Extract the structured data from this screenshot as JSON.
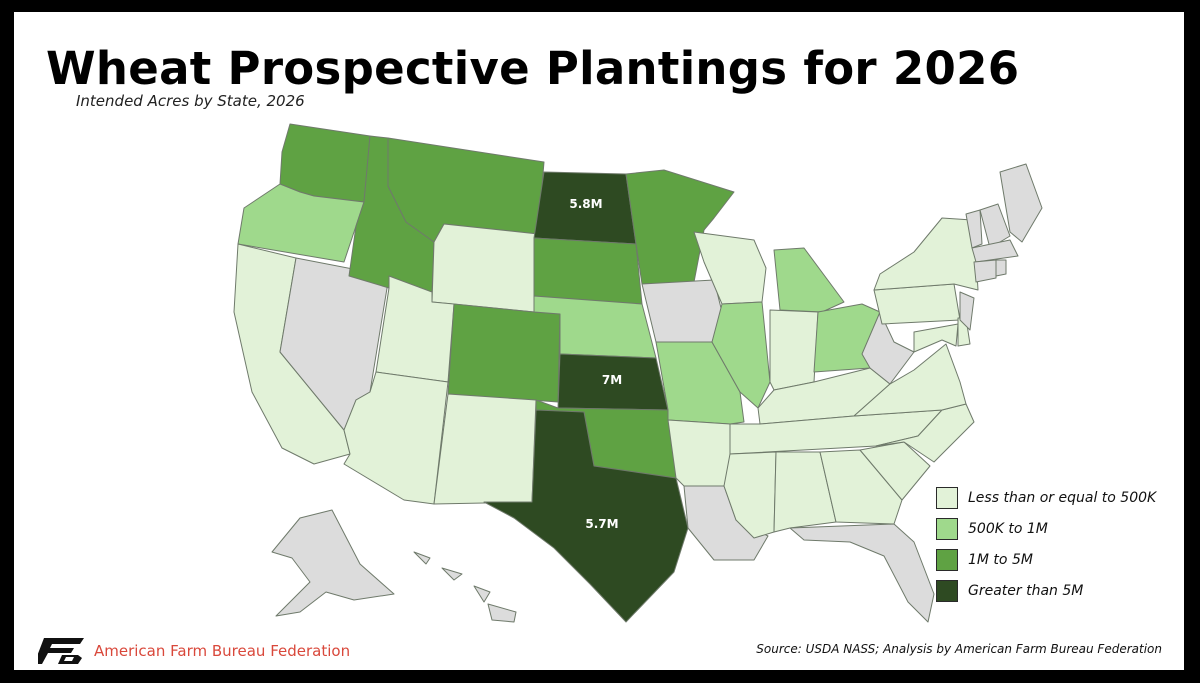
{
  "title": "Wheat Prospective Plantings for 2026",
  "subtitle": "Intended Acres by State, 2026",
  "colors": {
    "none": "#dcdcdc",
    "lte_500k": "#e2f2d8",
    "500k_1m": "#9fd98c",
    "1m_5m": "#5fa243",
    "gt_5m": "#2e4a22",
    "border": "#6f7a6b"
  },
  "legend": [
    {
      "label": "Less than or equal to 500K",
      "category": "lte_500k"
    },
    {
      "label": "500K to 1M",
      "category": "500k_1m"
    },
    {
      "label": "1M to 5M",
      "category": "1m_5m"
    },
    {
      "label": "Greater than 5M",
      "category": "gt_5m"
    }
  ],
  "map_labels": {
    "ND": "5.8M",
    "KS": "7M",
    "TX": "5.7M"
  },
  "state_categories": {
    "WA": "1m_5m",
    "OR": "500k_1m",
    "CA": "lte_500k",
    "NV": "none",
    "ID": "1m_5m",
    "MT": "1m_5m",
    "WY": "lte_500k",
    "UT": "lte_500k",
    "AZ": "lte_500k",
    "CO": "1m_5m",
    "NM": "lte_500k",
    "ND": "gt_5m",
    "SD": "1m_5m",
    "NE": "500k_1m",
    "KS": "gt_5m",
    "OK": "1m_5m",
    "TX": "gt_5m",
    "MN": "1m_5m",
    "IA": "none",
    "MO": "500k_1m",
    "AR": "lte_500k",
    "LA": "none",
    "WI": "lte_500k",
    "IL": "500k_1m",
    "MI": "500k_1m",
    "IN": "lte_500k",
    "OH": "500k_1m",
    "KY": "lte_500k",
    "TN": "lte_500k",
    "MS": "lte_500k",
    "AL": "lte_500k",
    "GA": "lte_500k",
    "FL": "none",
    "SC": "lte_500k",
    "NC": "lte_500k",
    "VA": "lte_500k",
    "WV": "none",
    "PA": "lte_500k",
    "NY": "lte_500k",
    "MD": "lte_500k",
    "DE": "lte_500k",
    "NJ": "none",
    "ME": "none",
    "VT": "none",
    "NH": "none",
    "MA": "none",
    "CT": "none",
    "RI": "none",
    "AK": "none",
    "HI": "none"
  },
  "footer": {
    "org": "American Farm Bureau Federation",
    "logo_icon": "fb-logo-icon",
    "source": "Source: USDA NASS; Analysis by American Farm Bureau Federation"
  }
}
